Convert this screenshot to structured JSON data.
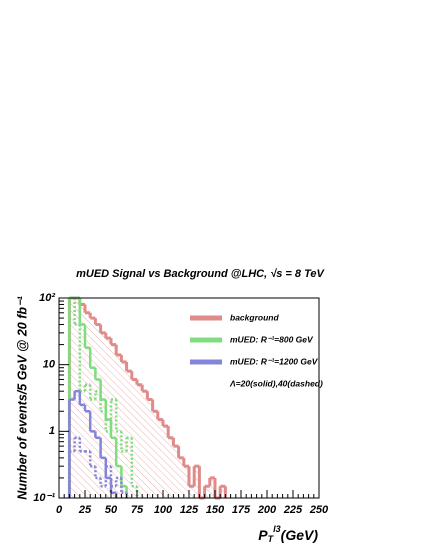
{
  "chart_data": {
    "type": "histogram",
    "title": "mUED Signal vs Background  @LHC, √s = 8 TeV",
    "ylabel": "Number of events/5 GeV @ 20 fb⁻¹",
    "xlabel": {
      "main": "P",
      "sub": "T",
      "sup": "l3",
      "unit": "(GeV)"
    },
    "log_y": true,
    "xlim": [
      0,
      250
    ],
    "xticks": [
      0,
      25,
      50,
      75,
      100,
      125,
      150,
      175,
      200,
      225,
      250
    ],
    "ylim": [
      0.1,
      100
    ],
    "yticks": [
      {
        "value": 0.1,
        "label": "10⁻¹"
      },
      1,
      10,
      {
        "value": 100,
        "label": "10²"
      }
    ],
    "legend": "top-right",
    "annotation": "Λ=20(solid),40(dashed)",
    "bins": [
      10,
      15,
      20,
      25,
      30,
      35,
      40,
      45,
      50,
      55,
      60,
      65,
      70,
      75,
      80,
      85,
      90,
      95,
      100,
      105,
      110,
      115,
      120,
      125,
      130,
      135,
      140,
      145,
      150,
      155,
      160
    ],
    "series": [
      {
        "name": "background",
        "color": "#e08a8a",
        "dashed": false,
        "hatch": true,
        "values": [
          100,
          100,
          80,
          60,
          50,
          40,
          30,
          25,
          20,
          14,
          11,
          8,
          6,
          5,
          4,
          3,
          2,
          1.5,
          1.2,
          0.8,
          0.6,
          0.4,
          0.3,
          0.15,
          0.3,
          0.1,
          0.15,
          0.2,
          0.1,
          0.15
        ]
      },
      {
        "name": "mUED: R⁻¹=800 GeV",
        "color": "#7fdc7f",
        "dashed": false,
        "hatch": false,
        "values": [
          100,
          100,
          40,
          18,
          9,
          6,
          3,
          1.5,
          0.8,
          0.3,
          0.15,
          null,
          null,
          null,
          null,
          null,
          null,
          null,
          null,
          null,
          null,
          null,
          null,
          null,
          null,
          null,
          null,
          null,
          null,
          null
        ]
      },
      {
        "color": "#7fdc7f",
        "dashed": true,
        "hatch": false,
        "values": [
          100,
          40,
          4,
          5,
          3,
          4,
          2,
          1,
          3,
          1,
          0.5,
          0.8,
          0.15,
          null,
          null,
          null,
          null,
          null,
          null,
          null,
          null,
          null,
          null,
          null,
          null,
          null,
          null,
          null,
          null,
          null
        ]
      },
      {
        "name": "mUED: R⁻¹=1200 GeV",
        "color": "#8484d8",
        "dashed": false,
        "hatch": false,
        "values": [
          3,
          4,
          2.5,
          2,
          1,
          0.8,
          0.4,
          0.2,
          0.12,
          null,
          null,
          null,
          null,
          null,
          null,
          null,
          null,
          null,
          null,
          null,
          null,
          null,
          null,
          null,
          null,
          null,
          null,
          null,
          null,
          null
        ]
      },
      {
        "color": "#8484d8",
        "dashed": true,
        "hatch": false,
        "values": [
          0.5,
          0.8,
          0.5,
          0.5,
          0.3,
          0.2,
          0.15,
          0.3,
          0.15,
          0.2,
          0.12,
          null,
          null,
          null,
          null,
          null,
          null,
          null,
          null,
          null,
          null,
          null,
          null,
          null,
          null,
          null,
          null,
          null,
          null,
          null
        ]
      }
    ]
  }
}
